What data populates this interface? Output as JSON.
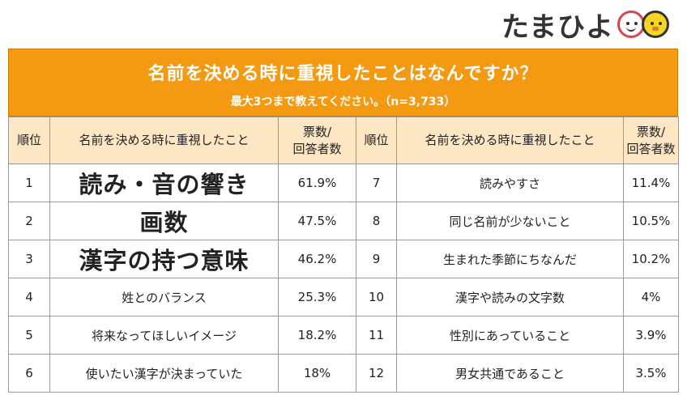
{
  "logo": {
    "text": "たまひよ"
  },
  "title": {
    "main": "名前を決める時に重視したことはなんですか？",
    "sub": "最大3つまで教えてください。（n=3,733）"
  },
  "table": {
    "headers": {
      "rank": "順位",
      "item": "名前を決める時に重視したこと",
      "votes_line1": "票数/",
      "votes_line2": "回答者数"
    },
    "rows": [
      {
        "left": {
          "rank": "1",
          "item": "読み・音の響き",
          "pct": "61.9%"
        },
        "right": {
          "rank": "7",
          "item": "読みやすさ",
          "pct": "11.4%"
        }
      },
      {
        "left": {
          "rank": "2",
          "item": "画数",
          "pct": "47.5%"
        },
        "right": {
          "rank": "8",
          "item": "同じ名前が少ないこと",
          "pct": "10.5%"
        }
      },
      {
        "left": {
          "rank": "3",
          "item": "漢字の持つ意味",
          "pct": "46.2%"
        },
        "right": {
          "rank": "9",
          "item": "生まれた季節にちなんだ",
          "pct": "10.2%"
        }
      },
      {
        "left": {
          "rank": "4",
          "item": "姓とのバランス",
          "pct": "25.3%"
        },
        "right": {
          "rank": "10",
          "item": "漢字や読みの文字数",
          "pct": "4%"
        }
      },
      {
        "left": {
          "rank": "5",
          "item": "将来なってほしいイメージ",
          "pct": "18.2%"
        },
        "right": {
          "rank": "11",
          "item": "性別にあっていること",
          "pct": "3.9%"
        }
      },
      {
        "left": {
          "rank": "6",
          "item": "使いたい漢字が決まっていた",
          "pct": "18%"
        },
        "right": {
          "rank": "12",
          "item": "男女共通であること",
          "pct": "3.5%"
        }
      }
    ]
  },
  "colors": {
    "header_orange": "#f39a12",
    "column_header_bg": "#fde6c4"
  }
}
